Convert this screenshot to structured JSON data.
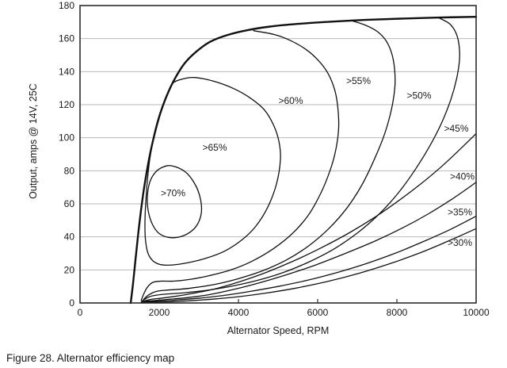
{
  "figure_caption": "Figure 28. Alternator efficiency map",
  "colors": {
    "curve": "#111111",
    "grid": "#bababa",
    "border": "#2b2b2b",
    "text": "#1a1a1a",
    "background": "#ffffff"
  },
  "chart_data": {
    "type": "line",
    "subtype": "efficiency-contour-map",
    "title": "",
    "xlabel": "Alternator Speed, RPM",
    "ylabel": "Output, amps @ 14V, 25C",
    "xlim": [
      0,
      10000
    ],
    "ylim": [
      0,
      180
    ],
    "x_ticks": [
      0,
      2000,
      4000,
      6000,
      8000,
      10000
    ],
    "y_ticks": [
      0,
      20,
      40,
      60,
      80,
      100,
      120,
      140,
      160,
      180
    ],
    "grid": "horizontal-only",
    "legend": "none",
    "series": [
      {
        "name": "maximum-output-envelope",
        "label": "",
        "style": "thick",
        "closed": false,
        "points": [
          [
            1280,
            0
          ],
          [
            1340,
            12
          ],
          [
            1400,
            26
          ],
          [
            1470,
            42
          ],
          [
            1550,
            58
          ],
          [
            1640,
            73
          ],
          [
            1750,
            88
          ],
          [
            1880,
            102
          ],
          [
            2030,
            115
          ],
          [
            2200,
            126
          ],
          [
            2400,
            136
          ],
          [
            2640,
            145
          ],
          [
            2930,
            152
          ],
          [
            3280,
            158
          ],
          [
            3700,
            162
          ],
          [
            4200,
            165
          ],
          [
            4800,
            167.3
          ],
          [
            5500,
            168.9
          ],
          [
            6300,
            170.2
          ],
          [
            7200,
            171.3
          ],
          [
            8100,
            172.1
          ],
          [
            9000,
            172.7
          ],
          [
            10000,
            173.2
          ]
        ]
      },
      {
        "name": "contour-70pct",
        "label": ">70%",
        "style": "thin",
        "closed": true,
        "label_pos": [
          2350,
          66.5
        ],
        "points": [
          [
            2320,
            83
          ],
          [
            2650,
            79.5
          ],
          [
            2900,
            72
          ],
          [
            3040,
            63
          ],
          [
            3060,
            54
          ],
          [
            2920,
            46
          ],
          [
            2640,
            41
          ],
          [
            2300,
            39.5
          ],
          [
            2000,
            42
          ],
          [
            1820,
            48
          ],
          [
            1720,
            56
          ],
          [
            1700,
            64
          ],
          [
            1760,
            73
          ],
          [
            1900,
            79
          ],
          [
            2100,
            82.3
          ]
        ]
      },
      {
        "name": "contour-65pct",
        "label": ">65%",
        "style": "thin",
        "closed": true,
        "label_pos": [
          3400,
          94
        ],
        "points": [
          [
            2340,
            133
          ],
          [
            2620,
            135.7
          ],
          [
            2920,
            136.4
          ],
          [
            3400,
            134
          ],
          [
            3900,
            129.5
          ],
          [
            4300,
            124
          ],
          [
            4650,
            117
          ],
          [
            4880,
            108
          ],
          [
            5020,
            98
          ],
          [
            5060,
            87
          ],
          [
            4960,
            72
          ],
          [
            4740,
            58
          ],
          [
            4440,
            46.5
          ],
          [
            4080,
            38
          ],
          [
            3660,
            31.5
          ],
          [
            3200,
            27.2
          ],
          [
            2750,
            24.5
          ],
          [
            2330,
            23
          ],
          [
            2040,
            23.2
          ],
          [
            1840,
            25.5
          ],
          [
            1710,
            30.5
          ],
          [
            1650,
            39
          ],
          [
            1640,
            49
          ],
          [
            1665,
            63
          ],
          [
            1720,
            79
          ],
          [
            1800,
            93
          ],
          [
            1910,
            106
          ],
          [
            2050,
            117
          ],
          [
            2200,
            126
          ]
        ]
      },
      {
        "name": "contour-60pct",
        "label": ">60%",
        "style": "thin",
        "closed": false,
        "label_pos": [
          5320,
          122.5
        ],
        "points": [
          [
            4380,
            164.8
          ],
          [
            4900,
            162.5
          ],
          [
            5300,
            159
          ],
          [
            5700,
            153.5
          ],
          [
            6010,
            147
          ],
          [
            6260,
            139
          ],
          [
            6430,
            129
          ],
          [
            6510,
            118
          ],
          [
            6530,
            106
          ],
          [
            6460,
            93
          ],
          [
            6310,
            80
          ],
          [
            6070,
            66
          ],
          [
            5760,
            53
          ],
          [
            5360,
            42
          ],
          [
            4890,
            33
          ],
          [
            4360,
            25.5
          ],
          [
            3810,
            20
          ],
          [
            3260,
            16.5
          ],
          [
            2760,
            14.2
          ],
          [
            2360,
            13.2
          ],
          [
            2050,
            13.2
          ],
          [
            1840,
            12.5
          ],
          [
            1700,
            9.5
          ],
          [
            1600,
            5
          ],
          [
            1545,
            1.5
          ]
        ]
      },
      {
        "name": "contour-55pct",
        "label": ">55%",
        "style": "thin",
        "closed": false,
        "label_pos": [
          7030,
          134.5
        ],
        "points": [
          [
            6850,
            170.9
          ],
          [
            7200,
            168.2
          ],
          [
            7510,
            164.2
          ],
          [
            7730,
            158.6
          ],
          [
            7870,
            151
          ],
          [
            7940,
            142
          ],
          [
            7950,
            131
          ],
          [
            7870,
            118
          ],
          [
            7700,
            103
          ],
          [
            7450,
            88
          ],
          [
            7130,
            72
          ],
          [
            6740,
            57.5
          ],
          [
            6280,
            45
          ],
          [
            5770,
            34.5
          ],
          [
            5210,
            26
          ],
          [
            4610,
            19.5
          ],
          [
            4010,
            14.8
          ],
          [
            3460,
            11.5
          ],
          [
            2960,
            9.5
          ],
          [
            2530,
            8.3
          ],
          [
            2190,
            7.8
          ],
          [
            1930,
            7
          ],
          [
            1740,
            5
          ],
          [
            1605,
            2.2
          ]
        ]
      },
      {
        "name": "contour-50pct",
        "label": ">50%",
        "style": "thin",
        "closed": false,
        "label_pos": [
          8560,
          125.5
        ],
        "points": [
          [
            9080,
            172.3
          ],
          [
            9330,
            169
          ],
          [
            9490,
            163.5
          ],
          [
            9570,
            156
          ],
          [
            9580,
            147
          ],
          [
            9510,
            136
          ],
          [
            9360,
            123
          ],
          [
            9130,
            109
          ],
          [
            8830,
            95
          ],
          [
            8470,
            81
          ],
          [
            8050,
            67
          ],
          [
            7560,
            54
          ],
          [
            7010,
            42.5
          ],
          [
            6400,
            32.5
          ],
          [
            5750,
            24.5
          ],
          [
            5080,
            18
          ],
          [
            4400,
            13.2
          ],
          [
            3750,
            9.8
          ],
          [
            3150,
            7.5
          ],
          [
            2650,
            6.2
          ],
          [
            2250,
            5.5
          ],
          [
            1950,
            4.8
          ],
          [
            1750,
            3.8
          ],
          [
            1620,
            2
          ],
          [
            1550,
            0.7
          ]
        ]
      },
      {
        "name": "contour-45pct",
        "label": ">45%",
        "style": "thin",
        "closed": false,
        "label_pos": [
          9500,
          105.5
        ],
        "points": [
          [
            10000,
            102.5
          ],
          [
            9550,
            92
          ],
          [
            9100,
            82
          ],
          [
            8600,
            72
          ],
          [
            8050,
            62
          ],
          [
            7450,
            52
          ],
          [
            6800,
            42.5
          ],
          [
            6100,
            33.5
          ],
          [
            5400,
            25.5
          ],
          [
            4700,
            18.5
          ],
          [
            4050,
            13
          ],
          [
            3450,
            8.8
          ],
          [
            2900,
            6
          ],
          [
            2450,
            4.2
          ],
          [
            2080,
            3
          ],
          [
            1800,
            2.2
          ],
          [
            1650,
            1.4
          ],
          [
            1560,
            0.5
          ]
        ]
      },
      {
        "name": "contour-40pct",
        "label": ">40%",
        "style": "thin",
        "closed": false,
        "label_pos": [
          9650,
          76.5
        ],
        "points": [
          [
            10000,
            73
          ],
          [
            9400,
            63
          ],
          [
            8800,
            54
          ],
          [
            8150,
            45.5
          ],
          [
            7450,
            37.5
          ],
          [
            6700,
            30
          ],
          [
            5950,
            23
          ],
          [
            5200,
            17
          ],
          [
            4500,
            12
          ],
          [
            3850,
            8
          ],
          [
            3250,
            5
          ],
          [
            2700,
            3.2
          ],
          [
            2250,
            2.2
          ],
          [
            1900,
            1.5
          ],
          [
            1680,
            1
          ],
          [
            1545,
            0.3
          ]
        ]
      },
      {
        "name": "contour-35pct",
        "label": ">35%",
        "style": "thin",
        "closed": false,
        "label_pos": [
          9590,
          55
        ],
        "points": [
          [
            10000,
            52.5
          ],
          [
            9350,
            44.5
          ],
          [
            8700,
            37.5
          ],
          [
            8000,
            30.5
          ],
          [
            7250,
            24
          ],
          [
            6500,
            18.5
          ],
          [
            5750,
            13.8
          ],
          [
            5000,
            10
          ],
          [
            4300,
            7
          ],
          [
            3650,
            4.6
          ],
          [
            3050,
            3
          ],
          [
            2500,
            1.9
          ],
          [
            2080,
            1.2
          ],
          [
            1780,
            0.8
          ],
          [
            1565,
            0.2
          ]
        ]
      },
      {
        "name": "contour-30pct",
        "label": ">30%",
        "style": "thin",
        "closed": false,
        "label_pos": [
          9590,
          36.5
        ],
        "points": [
          [
            10000,
            45
          ],
          [
            9300,
            37.5
          ],
          [
            8600,
            30.5
          ],
          [
            7850,
            24
          ],
          [
            7050,
            18
          ],
          [
            6250,
            13
          ],
          [
            5450,
            9
          ],
          [
            4700,
            6
          ],
          [
            4000,
            3.8
          ],
          [
            3350,
            2.3
          ],
          [
            2750,
            1.3
          ],
          [
            2280,
            0.7
          ],
          [
            1880,
            0.4
          ],
          [
            1590,
            0.1
          ]
        ]
      }
    ]
  }
}
